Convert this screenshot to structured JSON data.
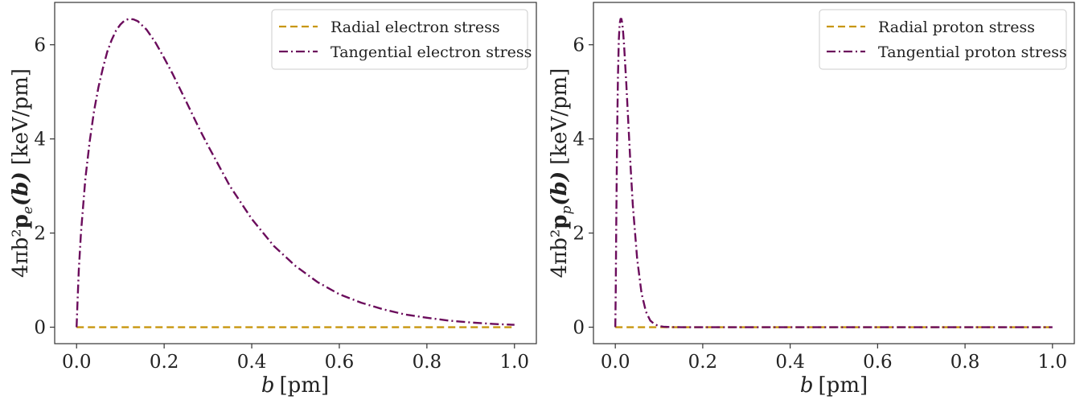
{
  "colors": {
    "radial": "#c8960f",
    "tangential": "#6b0c5c"
  },
  "chart_data": [
    {
      "type": "line",
      "xlabel_var": "b",
      "xlabel_unit": "[pm]",
      "ylabel_prefix": "4πb²",
      "ylabel_sub": "e",
      "ylabel_arg": "(b)",
      "ylabel_unit": "[keV/pm]",
      "xlim": [
        -0.05,
        1.05
      ],
      "ylim": [
        -0.35,
        6.9
      ],
      "xticks": [
        0.0,
        0.2,
        0.4,
        0.6,
        0.8,
        1.0
      ],
      "xtick_labels": [
        "0.0",
        "0.2",
        "0.4",
        "0.6",
        "0.8",
        "1.0"
      ],
      "yticks": [
        0,
        2,
        4,
        6
      ],
      "ytick_labels": [
        "0",
        "2",
        "4",
        "6"
      ],
      "grid": false,
      "legend_position": "top-right",
      "series": [
        {
          "name": "Radial electron stress",
          "style": "dashed",
          "x": [
            0.0,
            1.0
          ],
          "y": [
            0.0,
            0.0
          ]
        },
        {
          "name": "Tangential electron stress",
          "style": "dashdot",
          "x": [
            0.0,
            0.002,
            0.005,
            0.01,
            0.02,
            0.03,
            0.04,
            0.05,
            0.06,
            0.07,
            0.08,
            0.09,
            0.1,
            0.11,
            0.12,
            0.13,
            0.14,
            0.16,
            0.18,
            0.2,
            0.22,
            0.25,
            0.28,
            0.3,
            0.35,
            0.4,
            0.45,
            0.5,
            0.55,
            0.6,
            0.65,
            0.7,
            0.75,
            0.8,
            0.85,
            0.9,
            0.95,
            1.0
          ],
          "y": [
            0.0,
            0.5,
            1.2,
            2.0,
            3.15,
            3.95,
            4.6,
            5.1,
            5.5,
            5.85,
            6.1,
            6.3,
            6.43,
            6.52,
            6.55,
            6.54,
            6.5,
            6.32,
            6.05,
            5.72,
            5.37,
            4.8,
            4.22,
            3.86,
            3.0,
            2.3,
            1.73,
            1.3,
            0.96,
            0.7,
            0.52,
            0.38,
            0.27,
            0.2,
            0.14,
            0.1,
            0.07,
            0.05
          ]
        }
      ]
    },
    {
      "type": "line",
      "xlabel_var": "b",
      "xlabel_unit": "[pm]",
      "ylabel_prefix": "4πb²",
      "ylabel_sub": "p",
      "ylabel_arg": "(b)",
      "ylabel_unit": "[keV/pm]",
      "xlim": [
        -0.05,
        1.05
      ],
      "ylim": [
        -0.35,
        6.9
      ],
      "xticks": [
        0.0,
        0.2,
        0.4,
        0.6,
        0.8,
        1.0
      ],
      "xtick_labels": [
        "0.0",
        "0.2",
        "0.4",
        "0.6",
        "0.8",
        "1.0"
      ],
      "yticks": [
        0,
        2,
        4,
        6
      ],
      "ytick_labels": [
        "0",
        "2",
        "4",
        "6"
      ],
      "grid": false,
      "legend_position": "top-right",
      "series": [
        {
          "name": "Radial proton stress",
          "style": "dashed",
          "x": [
            0.0,
            1.0
          ],
          "y": [
            0.0,
            0.0
          ]
        },
        {
          "name": "Tangential proton stress",
          "style": "dashdot",
          "x": [
            0.0,
            0.001,
            0.002,
            0.004,
            0.006,
            0.008,
            0.01,
            0.012,
            0.014,
            0.016,
            0.018,
            0.02,
            0.025,
            0.03,
            0.035,
            0.04,
            0.05,
            0.06,
            0.07,
            0.08,
            0.09,
            0.1,
            0.11,
            0.12,
            0.13,
            0.15,
            0.2,
            0.3,
            0.5,
            0.7,
            1.0
          ],
          "y": [
            0.0,
            0.8,
            2.0,
            4.0,
            5.3,
            6.1,
            6.45,
            6.55,
            6.55,
            6.45,
            6.25,
            6.0,
            5.2,
            4.3,
            3.4,
            2.6,
            1.45,
            0.72,
            0.33,
            0.14,
            0.06,
            0.025,
            0.01,
            0.005,
            0.002,
            0.0,
            0.0,
            0.0,
            0.0,
            0.0,
            0.0
          ]
        }
      ]
    }
  ]
}
